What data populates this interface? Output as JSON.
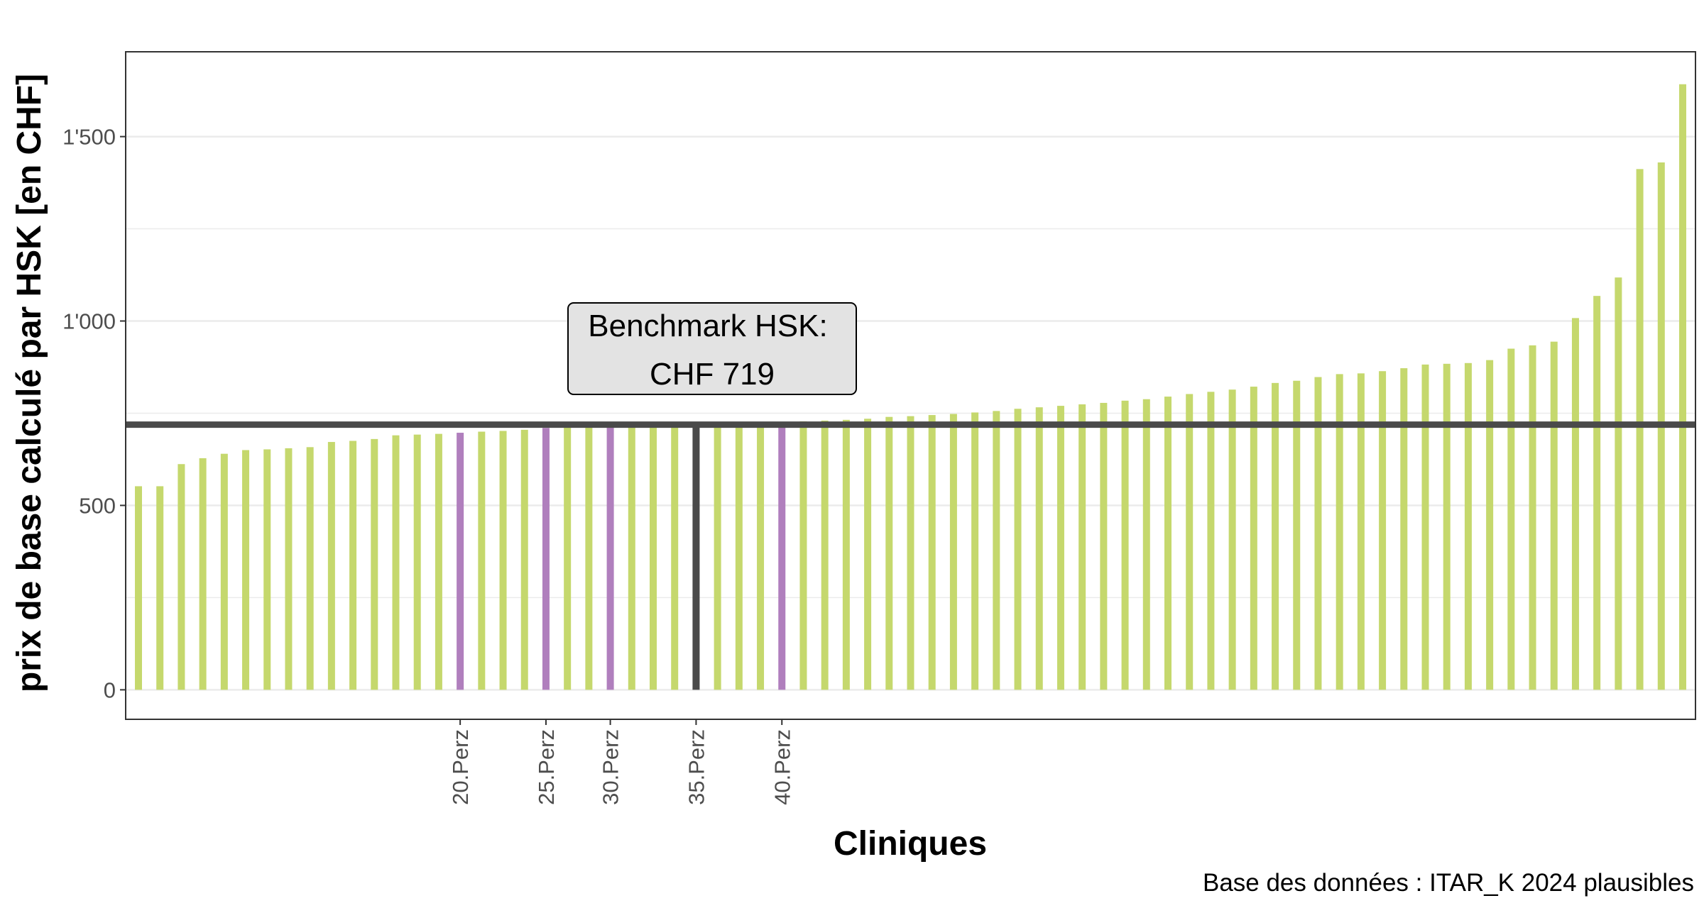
{
  "chart_data": {
    "type": "bar",
    "xlabel": "Cliniques",
    "ylabel": "prix de base calculé par HSK [en CHF]",
    "caption": "Base des données : ITAR_K 2024 plausibles",
    "ylim": [
      -80,
      1730
    ],
    "y_ticks": [
      {
        "value": 0,
        "label": "0"
      },
      {
        "value": 500,
        "label": "500"
      },
      {
        "value": 1000,
        "label": "1'000"
      },
      {
        "value": 1500,
        "label": "1'500"
      }
    ],
    "grid": true,
    "values": [
      552,
      552,
      612,
      628,
      640,
      650,
      652,
      655,
      658,
      672,
      675,
      680,
      690,
      692,
      694,
      697,
      700,
      702,
      705,
      710,
      712,
      714,
      716,
      716,
      717,
      717,
      719,
      719,
      720,
      722,
      725,
      728,
      730,
      732,
      735,
      740,
      742,
      745,
      748,
      752,
      756,
      762,
      766,
      770,
      774,
      778,
      784,
      788,
      795,
      802,
      808,
      814,
      822,
      832,
      838,
      848,
      856,
      858,
      864,
      872,
      882,
      884,
      886,
      894,
      925,
      934,
      944,
      1008,
      1068,
      1118,
      1412,
      1430,
      1642
    ],
    "highlighted_bars": [
      {
        "index": 15,
        "label": "20.Perz",
        "color": "#b07fbd"
      },
      {
        "index": 19,
        "label": "25.Perz",
        "color": "#b07fbd"
      },
      {
        "index": 22,
        "label": "30.Perz",
        "color": "#b07fbd"
      },
      {
        "index": 26,
        "label": "35.Perz",
        "color": "#4a4a4a"
      },
      {
        "index": 30,
        "label": "40.Perz",
        "color": "#b07fbd"
      }
    ],
    "bar_color": "#c5d86d",
    "benchmark": {
      "value": 719,
      "color": "#4a4a4a",
      "label_line1": "Benchmark HSK:",
      "label_line2": "CHF 719"
    }
  }
}
